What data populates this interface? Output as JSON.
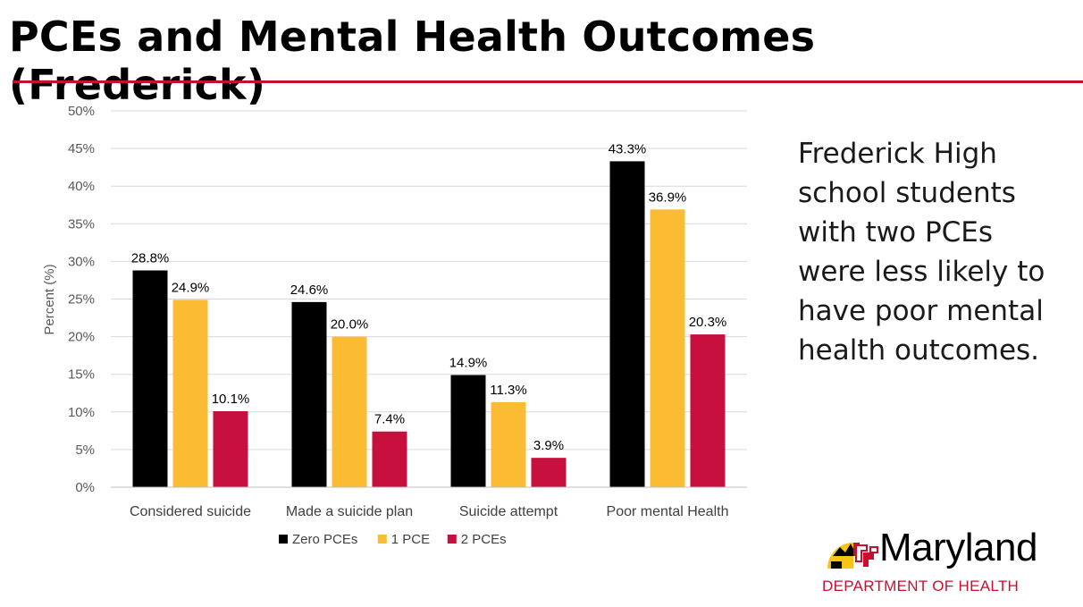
{
  "slide": {
    "title": "PCEs and Mental Health Outcomes (Frederick)",
    "callout": "Frederick High school students with two PCEs were less likely to have poor mental health outcomes."
  },
  "logo": {
    "name": "Maryland",
    "department": "DEPARTMENT OF HEALTH"
  },
  "colors": {
    "accent": "#c8102e",
    "zero": "#000000",
    "one": "#fbbc34",
    "two": "#c8103e"
  },
  "chart_data": {
    "type": "bar",
    "title": "",
    "xlabel": "",
    "ylabel": "Percent (%)",
    "ylim": [
      0,
      50
    ],
    "yticks": [
      "0%",
      "5%",
      "10%",
      "15%",
      "20%",
      "25%",
      "30%",
      "35%",
      "40%",
      "45%",
      "50%"
    ],
    "categories": [
      "Considered suicide",
      "Made a suicide plan",
      "Suicide attempt",
      "Poor mental Health"
    ],
    "series": [
      {
        "name": "Zero PCEs",
        "color": "#000000",
        "values": [
          28.8,
          24.6,
          14.9,
          43.3
        ],
        "labels": [
          "28.8%",
          "24.6%",
          "14.9%",
          "43.3%"
        ]
      },
      {
        "name": "1 PCE",
        "color": "#fbbc34",
        "values": [
          24.9,
          20.0,
          11.3,
          36.9
        ],
        "labels": [
          "24.9%",
          "20.0%",
          "11.3%",
          "36.9%"
        ]
      },
      {
        "name": "2 PCEs",
        "color": "#c8103e",
        "values": [
          10.1,
          7.4,
          3.9,
          20.3
        ],
        "labels": [
          "10.1%",
          "7.4%",
          "3.9%",
          "20.3%"
        ]
      }
    ],
    "legend_position": "bottom",
    "grid": true
  }
}
